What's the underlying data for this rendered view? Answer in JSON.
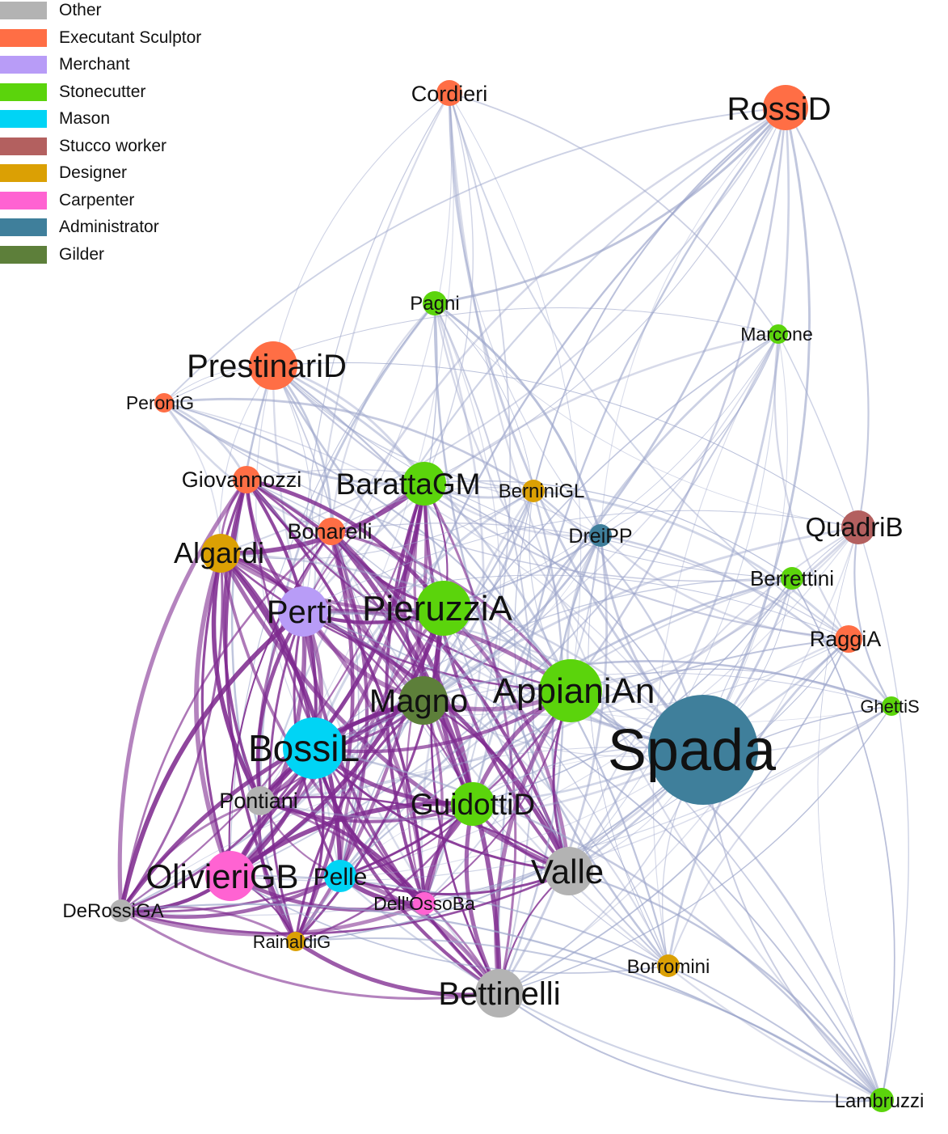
{
  "legend": [
    {
      "label": "Other",
      "color": "#b3b3b3"
    },
    {
      "label": "Executant Sculptor",
      "color": "#ff6e45"
    },
    {
      "label": "Merchant",
      "color": "#b89cf7"
    },
    {
      "label": "Stonecutter",
      "color": "#5bd40c"
    },
    {
      "label": "Mason",
      "color": "#00d4f5"
    },
    {
      "label": "Stucco worker",
      "color": "#b3605f"
    },
    {
      "label": "Designer",
      "color": "#dba004"
    },
    {
      "label": "Carpenter",
      "color": "#ff63d2"
    },
    {
      "label": "Administrator",
      "color": "#3f7f9b"
    },
    {
      "label": "Gilder",
      "color": "#5d7f3a"
    }
  ],
  "nodes": [
    {
      "id": "Cordieri",
      "label": "Cordieri",
      "role": "Executant Sculptor"
    },
    {
      "id": "RossiD",
      "label": "RossiD",
      "role": "Executant Sculptor"
    },
    {
      "id": "Pagni",
      "label": "Pagni",
      "role": "Stonecutter"
    },
    {
      "id": "Marcone",
      "label": "Marcone",
      "role": "Stonecutter"
    },
    {
      "id": "PrestinariD",
      "label": "PrestinariD",
      "role": "Executant Sculptor"
    },
    {
      "id": "PeroniG",
      "label": "PeroniG",
      "role": "Executant Sculptor"
    },
    {
      "id": "Giovannozzi",
      "label": "Giovannozzi",
      "role": "Executant Sculptor"
    },
    {
      "id": "BarattaGM",
      "label": "BarattaGM",
      "role": "Stonecutter"
    },
    {
      "id": "BerniniGL",
      "label": "BerniniGL",
      "role": "Designer"
    },
    {
      "id": "Bonarelli",
      "label": "Bonarelli",
      "role": "Executant Sculptor"
    },
    {
      "id": "Algardi",
      "label": "Algardi",
      "role": "Designer"
    },
    {
      "id": "DreiPP",
      "label": "DreiPP",
      "role": "Administrator"
    },
    {
      "id": "QuadriB",
      "label": "QuadriB",
      "role": "Stucco worker"
    },
    {
      "id": "Berrettini",
      "label": "Berrettini",
      "role": "Stonecutter"
    },
    {
      "id": "Perti",
      "label": "Perti",
      "role": "Merchant"
    },
    {
      "id": "PieruzziA",
      "label": "PieruzziA",
      "role": "Stonecutter"
    },
    {
      "id": "RaggiA",
      "label": "RaggiA",
      "role": "Executant Sculptor"
    },
    {
      "id": "Magno",
      "label": "Magno",
      "role": "Gilder"
    },
    {
      "id": "AppianiAn",
      "label": "AppianiAn",
      "role": "Stonecutter"
    },
    {
      "id": "GhettiS",
      "label": "GhettiS",
      "role": "Stonecutter"
    },
    {
      "id": "Spada",
      "label": "Spada",
      "role": "Administrator"
    },
    {
      "id": "BossiL",
      "label": "BossiL",
      "role": "Mason"
    },
    {
      "id": "Pontiani",
      "label": "Pontiani",
      "role": "Other"
    },
    {
      "id": "GuidottiD",
      "label": "GuidottiD",
      "role": "Stonecutter"
    },
    {
      "id": "OlivieriGB",
      "label": "OlivieriGB",
      "role": "Carpenter"
    },
    {
      "id": "Pelle",
      "label": "Pelle",
      "role": "Mason"
    },
    {
      "id": "Valle",
      "label": "Valle",
      "role": "Other"
    },
    {
      "id": "DeRossiGA",
      "label": "DeRossiGA",
      "role": "Other"
    },
    {
      "id": "DellOssoBa",
      "label": "Dell'OssoBa",
      "role": "Carpenter"
    },
    {
      "id": "RainaldiG",
      "label": "RainaldiG",
      "role": "Designer"
    },
    {
      "id": "Borromini",
      "label": "Borromini",
      "role": "Designer"
    },
    {
      "id": "Bettinelli",
      "label": "Bettinelli",
      "role": "Other"
    },
    {
      "id": "Lambruzzi",
      "label": "Lambruzzi",
      "role": "Stonecutter"
    }
  ]
}
